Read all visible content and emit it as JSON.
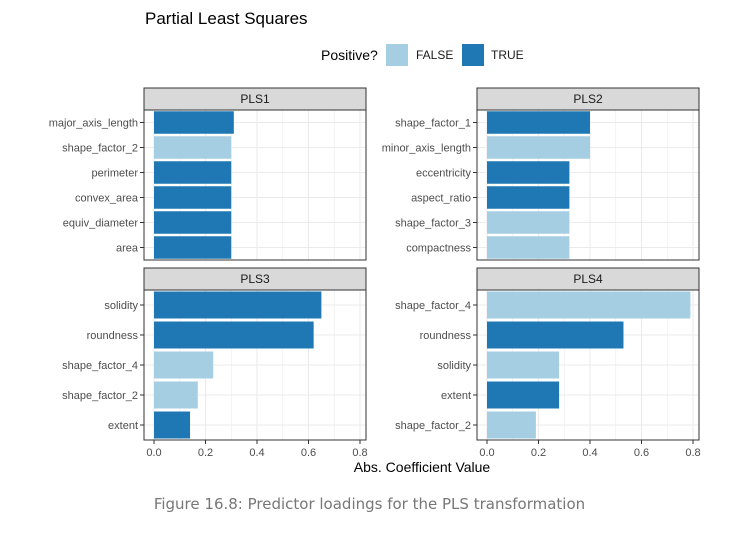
{
  "caption": "Figure 16.8: Predictor loadings for the PLS transformation",
  "chart_data": {
    "type": "bar",
    "orientation": "horizontal",
    "title": "Partial Least Squares",
    "xlabel": "Abs. Coefficient Value",
    "xlim": [
      0,
      0.8
    ],
    "xticks": [
      0.0,
      0.2,
      0.4,
      0.6,
      0.8
    ],
    "xtick_labels": [
      "0.0",
      "0.2",
      "0.4",
      "0.6",
      "0.8"
    ],
    "grid": true,
    "legend": {
      "title": "Positive?",
      "position": "top",
      "entries": [
        {
          "label": "FALSE",
          "color": "#a6cee3"
        },
        {
          "label": "TRUE",
          "color": "#1f78b4"
        }
      ]
    },
    "panels": [
      {
        "name": "PLS1",
        "categories": [
          "major_axis_length",
          "shape_factor_2",
          "perimeter",
          "convex_area",
          "equiv_diameter",
          "area"
        ],
        "values": [
          0.31,
          0.3,
          0.3,
          0.3,
          0.3,
          0.3
        ],
        "positive": [
          true,
          false,
          true,
          true,
          true,
          true
        ]
      },
      {
        "name": "PLS2",
        "categories": [
          "shape_factor_1",
          "minor_axis_length",
          "eccentricity",
          "aspect_ratio",
          "shape_factor_3",
          "compactness"
        ],
        "values": [
          0.4,
          0.4,
          0.32,
          0.32,
          0.32,
          0.32
        ],
        "positive": [
          true,
          false,
          true,
          true,
          false,
          false
        ]
      },
      {
        "name": "PLS3",
        "categories": [
          "solidity",
          "roundness",
          "shape_factor_4",
          "shape_factor_2",
          "extent"
        ],
        "values": [
          0.65,
          0.62,
          0.23,
          0.17,
          0.14
        ],
        "positive": [
          true,
          true,
          false,
          false,
          true
        ]
      },
      {
        "name": "PLS4",
        "categories": [
          "shape_factor_4",
          "roundness",
          "solidity",
          "extent",
          "shape_factor_2"
        ],
        "values": [
          0.79,
          0.53,
          0.28,
          0.28,
          0.19
        ],
        "positive": [
          false,
          true,
          false,
          true,
          false
        ]
      }
    ]
  }
}
